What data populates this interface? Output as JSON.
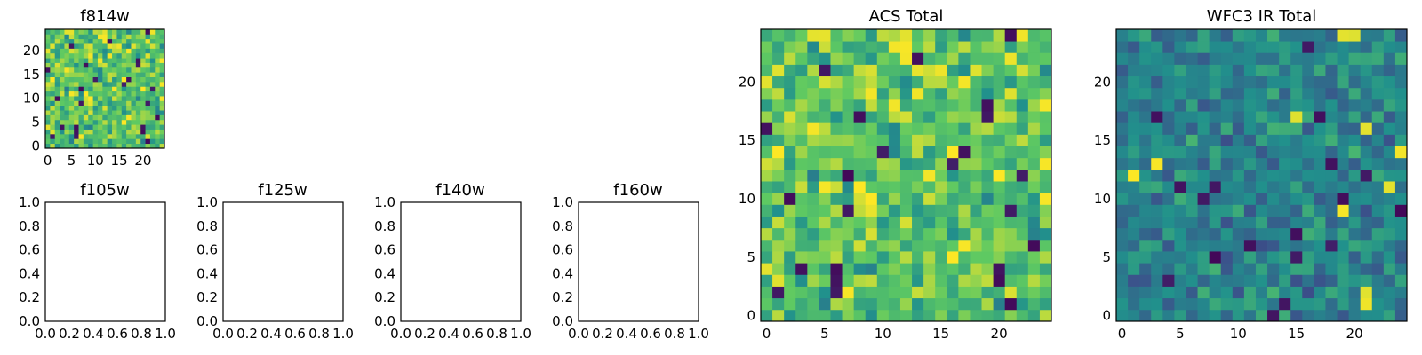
{
  "chart_data": [
    {
      "type": "heatmap",
      "title": "f814w",
      "grid_size": [
        25,
        25
      ],
      "colormap": "viridis",
      "x_ticks": [
        "0",
        "5",
        "10",
        "15",
        "20"
      ],
      "y_ticks": [
        "0",
        "5",
        "10",
        "15",
        "20"
      ],
      "x_tick_values": [
        0,
        5,
        10,
        15,
        20
      ],
      "y_tick_values": [
        0,
        5,
        10,
        15,
        20
      ],
      "xlim": [
        -0.5,
        24.5
      ],
      "ylim": [
        -0.5,
        24.5
      ],
      "value_mean": 0.72,
      "value_spread": 0.22,
      "seed": 11,
      "values": []
    },
    {
      "type": "empty",
      "title": "f105w",
      "x_ticks": [
        "0.0",
        "0.2",
        "0.4",
        "0.6",
        "0.8",
        "1.0"
      ],
      "y_ticks": [
        "0.0",
        "0.2",
        "0.4",
        "0.6",
        "0.8",
        "1.0"
      ],
      "xlim": [
        0,
        1
      ],
      "ylim": [
        0,
        1
      ]
    },
    {
      "type": "empty",
      "title": "f125w",
      "x_ticks": [
        "0.0",
        "0.2",
        "0.4",
        "0.6",
        "0.8",
        "1.0"
      ],
      "y_ticks": [
        "0.0",
        "0.2",
        "0.4",
        "0.6",
        "0.8",
        "1.0"
      ],
      "xlim": [
        0,
        1
      ],
      "ylim": [
        0,
        1
      ]
    },
    {
      "type": "empty",
      "title": "f140w",
      "x_ticks": [
        "0.0",
        "0.2",
        "0.4",
        "0.6",
        "0.8",
        "1.0"
      ],
      "y_ticks": [
        "0.0",
        "0.2",
        "0.4",
        "0.6",
        "0.8",
        "1.0"
      ],
      "xlim": [
        0,
        1
      ],
      "ylim": [
        0,
        1
      ]
    },
    {
      "type": "empty",
      "title": "f160w",
      "x_ticks": [
        "0.0",
        "0.2",
        "0.4",
        "0.6",
        "0.8",
        "1.0"
      ],
      "y_ticks": [
        "0.0",
        "0.2",
        "0.4",
        "0.6",
        "0.8",
        "1.0"
      ],
      "xlim": [
        0,
        1
      ],
      "ylim": [
        0,
        1
      ]
    },
    {
      "type": "heatmap",
      "title": "ACS Total",
      "grid_size": [
        25,
        25
      ],
      "colormap": "viridis",
      "x_ticks": [
        "0",
        "5",
        "10",
        "15",
        "20"
      ],
      "y_ticks": [
        "0",
        "5",
        "10",
        "15",
        "20"
      ],
      "x_tick_values": [
        0,
        5,
        10,
        15,
        20
      ],
      "y_tick_values": [
        0,
        5,
        10,
        15,
        20
      ],
      "xlim": [
        -0.5,
        24.5
      ],
      "ylim": [
        -0.5,
        24.5
      ],
      "value_mean": 0.72,
      "value_spread": 0.22,
      "seed": 11,
      "values": []
    },
    {
      "type": "heatmap",
      "title": "WFC3 IR Total",
      "grid_size": [
        25,
        25
      ],
      "colormap": "viridis",
      "x_ticks": [
        "0",
        "5",
        "10",
        "15",
        "20"
      ],
      "y_ticks": [
        "0",
        "5",
        "10",
        "15",
        "20"
      ],
      "x_tick_values": [
        0,
        5,
        10,
        15,
        20
      ],
      "y_tick_values": [
        0,
        5,
        10,
        15,
        20
      ],
      "xlim": [
        -0.5,
        24.5
      ],
      "ylim": [
        -0.5,
        24.5
      ],
      "value_mean": 0.45,
      "value_spread": 0.16,
      "seed": 29,
      "values": []
    }
  ]
}
